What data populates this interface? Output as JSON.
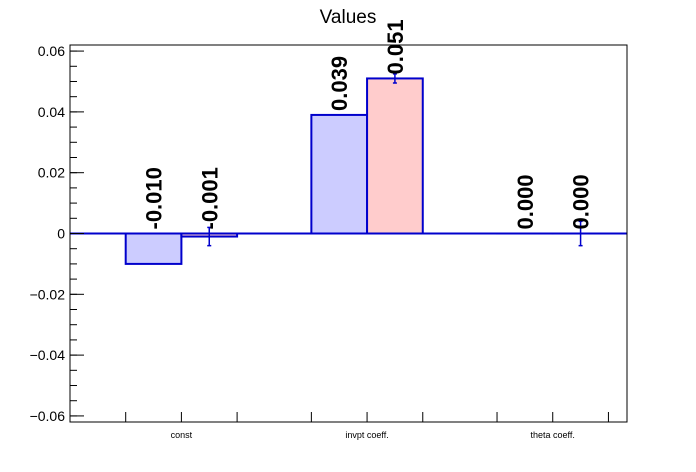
{
  "chart_data": {
    "type": "bar",
    "title": "Values",
    "xlabel": "",
    "ylabel": "",
    "categories": [
      "const",
      "invpt coeff.",
      "theta coeff."
    ],
    "ylim": [
      -0.062,
      0.062
    ],
    "yticks": [
      -0.06,
      -0.04,
      -0.02,
      0,
      0.02,
      0.04,
      0.06
    ],
    "ytick_labels": [
      "−0.06",
      "−0.04",
      "−0.02",
      "0",
      "0.02",
      "0.04",
      "0.06"
    ],
    "series": [
      {
        "values": [
          -0.01,
          0.039,
          0.0
        ],
        "labels": [
          "-0.010",
          "0.039",
          "0.000"
        ],
        "errors": [
          0,
          0,
          0
        ],
        "fill": "#ccccff",
        "edge": "#0000cc"
      },
      {
        "values": [
          -0.001,
          0.051,
          0.0
        ],
        "labels": [
          "-0.001",
          "0.051",
          "0.000"
        ],
        "errors": [
          0.003,
          0.0015,
          0.004
        ],
        "fill": "#ffcccc",
        "edge": "#0000cc"
      }
    ],
    "grid": false,
    "legend": "none",
    "colors": {
      "axis": "#000000",
      "zero_line": "#0000cc",
      "error_bar": "#0000cc"
    }
  }
}
